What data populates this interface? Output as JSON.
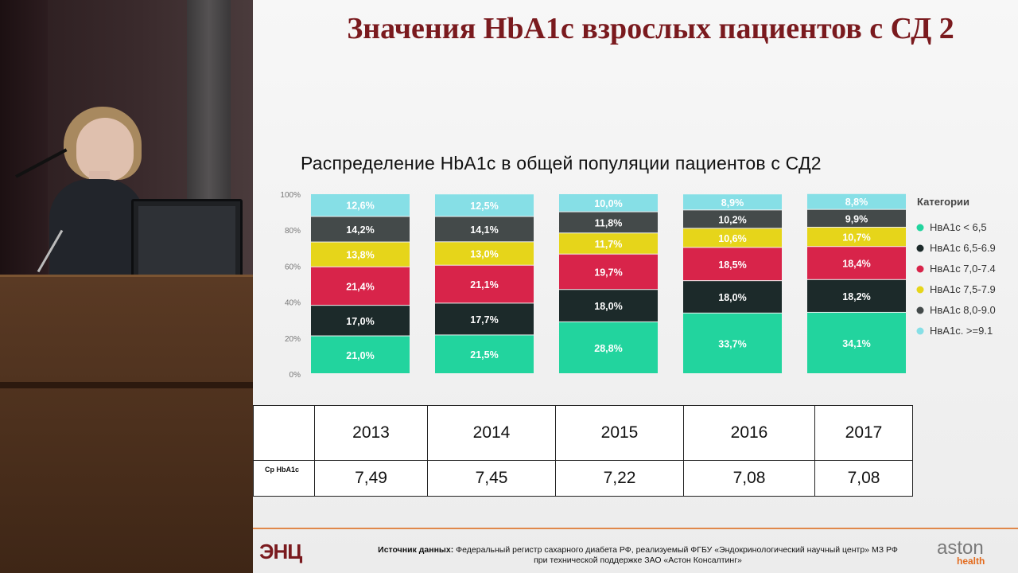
{
  "slide": {
    "title": "Значения HbA1c взрослых пациентов с СД 2",
    "chart_title": "Распределение  HbA1c в общей  популяции  пациентов  с СД2"
  },
  "chart_data": {
    "type": "bar",
    "stacked": true,
    "percent": true,
    "categories": [
      "2013",
      "2014",
      "2015",
      "2016",
      "2017"
    ],
    "ylim": [
      0,
      100
    ],
    "yticks": [
      "0%",
      "20%",
      "40%",
      "60%",
      "80%",
      "100%"
    ],
    "legend_title": "Категории",
    "legend_position": "right",
    "series": [
      {
        "name": "НвА1с < 6,5",
        "color": "#22d49e",
        "values": [
          21.0,
          21.5,
          28.8,
          33.7,
          34.1
        ],
        "labels": [
          "21,0%",
          "21,5%",
          "28,8%",
          "33,7%",
          "34,1%"
        ]
      },
      {
        "name": "НвА1с 6,5-6.9",
        "color": "#1c2a2a",
        "values": [
          17.0,
          17.7,
          18.0,
          18.0,
          18.2
        ],
        "labels": [
          "17,0%",
          "17,7%",
          "18,0%",
          "18,0%",
          "18,2%"
        ]
      },
      {
        "name": "НвА1с 7,0-7.4",
        "color": "#d8244a",
        "values": [
          21.4,
          21.1,
          19.7,
          18.5,
          18.4
        ],
        "labels": [
          "21,4%",
          "21,1%",
          "19,7%",
          "18,5%",
          "18,4%"
        ]
      },
      {
        "name": "НвА1с 7,5-7.9",
        "color": "#e6d51a",
        "values": [
          13.8,
          13.0,
          11.7,
          10.6,
          10.7
        ],
        "labels": [
          "13,8%",
          "13,0%",
          "11,7%",
          "10,6%",
          "10,7%"
        ]
      },
      {
        "name": "НвА1с 8,0-9.0",
        "color": "#444a4a",
        "values": [
          14.2,
          14.1,
          11.8,
          10.2,
          9.9
        ],
        "labels": [
          "14,2%",
          "14,1%",
          "11,8%",
          "10,2%",
          "9,9%"
        ]
      },
      {
        "name": "НвА1с. >=9.1",
        "color": "#86dfe6",
        "values": [
          12.6,
          12.5,
          10.0,
          8.9,
          8.8
        ],
        "labels": [
          "12,6%",
          "12,5%",
          "10,0%",
          "8,9%",
          "8,8%"
        ]
      }
    ]
  },
  "table": {
    "row_label": "Ср HbA1c",
    "years": [
      "2013",
      "2014",
      "2015",
      "2016",
      "2017"
    ],
    "values": [
      "7,49",
      "7,45",
      "7,22",
      "7,08",
      "7,08"
    ]
  },
  "footer": {
    "logo": "ЭНЦ",
    "source_label": "Источник данных:",
    "source_text": " Федеральный регистр сахарного диабета РФ, реализуемый ФГБУ «Эндокринологический научный центр» МЗ РФ",
    "source_text2": "при технической поддержке ЗАО «Астон Консалтинг»",
    "brand": "aston",
    "brand_sub": "health"
  }
}
